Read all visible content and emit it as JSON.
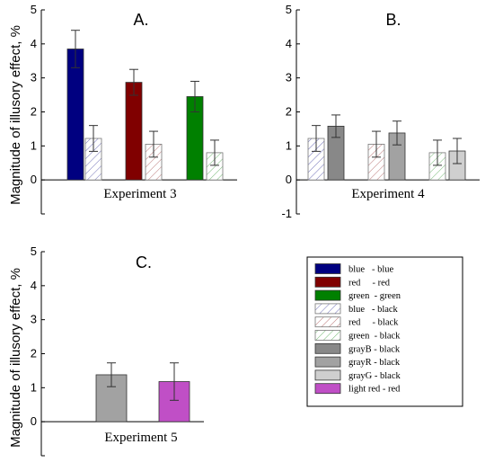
{
  "chart_data": [
    {
      "type": "bar",
      "panel": "A",
      "title": "A.",
      "xlabel": "Experiment 3",
      "ylabel": "Magnitude of illusory effect, %",
      "ylim": [
        -1,
        5
      ],
      "yticks": [
        0,
        1,
        2,
        3,
        4,
        5
      ],
      "bars": [
        {
          "condition": "blue - blue",
          "value": 3.85,
          "error": 0.55
        },
        {
          "condition": "blue - black",
          "value": 1.22,
          "error": 0.38
        },
        {
          "condition": "red - red",
          "value": 2.87,
          "error": 0.38
        },
        {
          "condition": "red - black",
          "value": 1.05,
          "error": 0.38
        },
        {
          "condition": "green - green",
          "value": 2.45,
          "error": 0.45
        },
        {
          "condition": "green - black",
          "value": 0.8,
          "error": 0.37
        }
      ]
    },
    {
      "type": "bar",
      "panel": "B",
      "title": "B.",
      "xlabel": "Experiment 4",
      "ylabel": "",
      "ylim": [
        -1,
        5
      ],
      "yticks": [
        -1,
        0,
        1,
        2,
        3,
        4,
        5
      ],
      "bars": [
        {
          "condition": "blue - black",
          "value": 1.22,
          "error": 0.38
        },
        {
          "condition": "grayB - black",
          "value": 1.58,
          "error": 0.33
        },
        {
          "condition": "red - black",
          "value": 1.05,
          "error": 0.38
        },
        {
          "condition": "grayR - black",
          "value": 1.38,
          "error": 0.35
        },
        {
          "condition": "green - black",
          "value": 0.8,
          "error": 0.37
        },
        {
          "condition": "grayG - black",
          "value": 0.85,
          "error": 0.37
        }
      ]
    },
    {
      "type": "bar",
      "panel": "C",
      "title": "C.",
      "xlabel": "Experiment 5",
      "ylabel": "Magnitude of illusory effect, %",
      "ylim": [
        -1,
        5
      ],
      "yticks": [
        0,
        1,
        2,
        3,
        4,
        5
      ],
      "bars": [
        {
          "condition": "grayR - black",
          "value": 1.38,
          "error": 0.35
        },
        {
          "condition": "light red - red",
          "value": 1.18,
          "error": 0.55
        }
      ]
    }
  ],
  "legend": [
    {
      "label": "blue   - blue",
      "fill": "#000080",
      "pattern": "solid"
    },
    {
      "label": "red     - red",
      "fill": "#800000",
      "pattern": "solid"
    },
    {
      "label": "green  - green",
      "fill": "#008000",
      "pattern": "solid"
    },
    {
      "label": "blue   - black",
      "fill": "#000080",
      "pattern": "hatch"
    },
    {
      "label": "red     - black",
      "fill": "#800000",
      "pattern": "hatch"
    },
    {
      "label": "green  - black",
      "fill": "#008000",
      "pattern": "hatch"
    },
    {
      "label": "grayB - black",
      "fill": "#888888",
      "pattern": "solid"
    },
    {
      "label": "grayR - black",
      "fill": "#a2a2a2",
      "pattern": "solid"
    },
    {
      "label": "grayG - black",
      "fill": "#cfcfcf",
      "pattern": "solid"
    },
    {
      "label": "light red - red",
      "fill": "#c04fc6",
      "pattern": "solid"
    }
  ],
  "colors": {
    "blue": "#000080",
    "red": "#800000",
    "green": "#008000",
    "grayB": "#888888",
    "grayR": "#a2a2a2",
    "grayG": "#cfcfcf",
    "lightred": "#c04fc6"
  }
}
